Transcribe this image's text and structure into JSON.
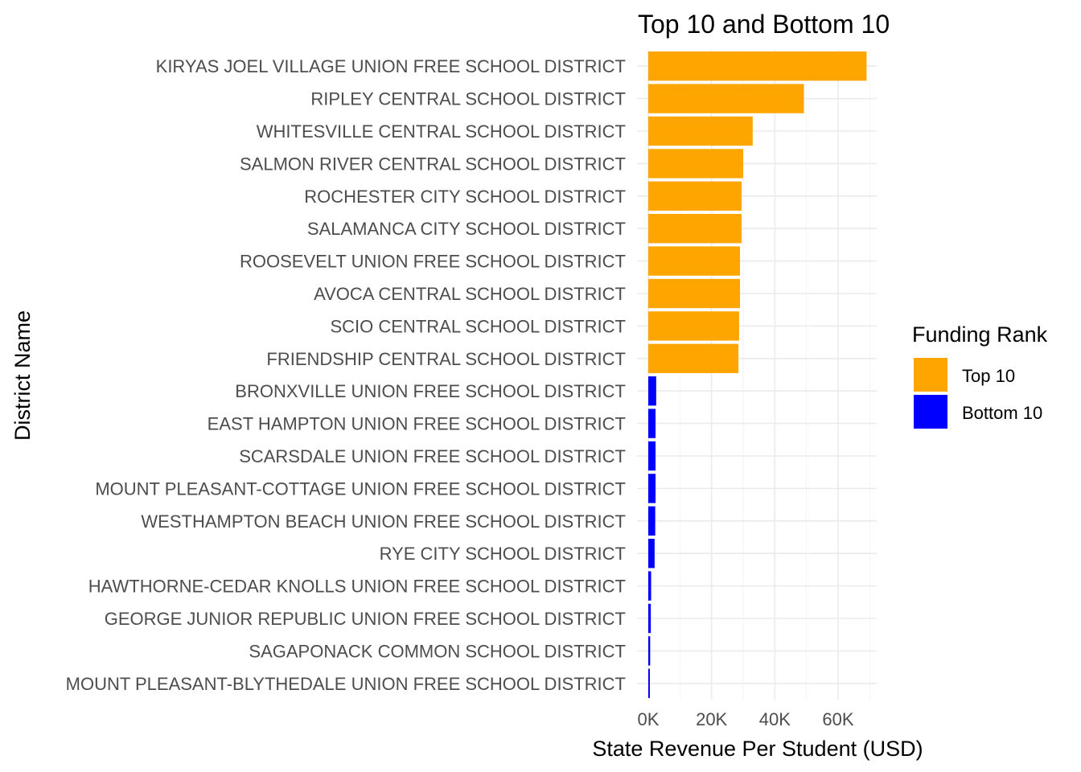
{
  "chart_data": {
    "type": "bar",
    "orientation": "horizontal",
    "title": "Top 10 and Bottom 10",
    "xlabel": "State Revenue Per Student (USD)",
    "ylabel": "District Name",
    "xlim": [
      0,
      72000
    ],
    "x_ticks": [
      0,
      20000,
      40000,
      60000
    ],
    "x_tick_labels": [
      "0K",
      "20K",
      "40K",
      "60K"
    ],
    "grid": true,
    "legend": {
      "title": "Funding Rank",
      "position": "right",
      "entries": [
        {
          "label": "Top 10",
          "color": "#FFA500"
        },
        {
          "label": "Bottom 10",
          "color": "#0000FF"
        }
      ]
    },
    "categories": [
      "KIRYAS JOEL VILLAGE UNION FREE SCHOOL DISTRICT",
      "RIPLEY CENTRAL SCHOOL DISTRICT",
      "WHITESVILLE CENTRAL SCHOOL DISTRICT",
      "SALMON RIVER CENTRAL SCHOOL DISTRICT",
      "ROCHESTER CITY SCHOOL DISTRICT",
      "SALAMANCA CITY SCHOOL DISTRICT",
      "ROOSEVELT UNION FREE SCHOOL DISTRICT",
      "AVOCA CENTRAL SCHOOL DISTRICT",
      "SCIO CENTRAL SCHOOL DISTRICT",
      "FRIENDSHIP CENTRAL SCHOOL DISTRICT",
      "BRONXVILLE UNION FREE SCHOOL DISTRICT",
      "EAST HAMPTON UNION FREE SCHOOL DISTRICT",
      "SCARSDALE UNION FREE SCHOOL DISTRICT",
      "MOUNT PLEASANT-COTTAGE UNION FREE SCHOOL DISTRICT",
      "WESTHAMPTON BEACH UNION FREE SCHOOL DISTRICT",
      "RYE CITY SCHOOL DISTRICT",
      "HAWTHORNE-CEDAR KNOLLS UNION FREE SCHOOL DISTRICT",
      "GEORGE JUNIOR REPUBLIC UNION FREE SCHOOL DISTRICT",
      "SAGAPONACK COMMON SCHOOL DISTRICT",
      "MOUNT PLEASANT-BLYTHEDALE UNION FREE SCHOOL DISTRICT"
    ],
    "values": [
      69000,
      49200,
      33000,
      30000,
      29500,
      29500,
      29000,
      29000,
      28700,
      28500,
      2500,
      2300,
      2300,
      2300,
      2200,
      2000,
      900,
      800,
      600,
      500
    ],
    "groups": [
      "Top 10",
      "Top 10",
      "Top 10",
      "Top 10",
      "Top 10",
      "Top 10",
      "Top 10",
      "Top 10",
      "Top 10",
      "Top 10",
      "Bottom 10",
      "Bottom 10",
      "Bottom 10",
      "Bottom 10",
      "Bottom 10",
      "Bottom 10",
      "Bottom 10",
      "Bottom 10",
      "Bottom 10",
      "Bottom 10"
    ]
  }
}
